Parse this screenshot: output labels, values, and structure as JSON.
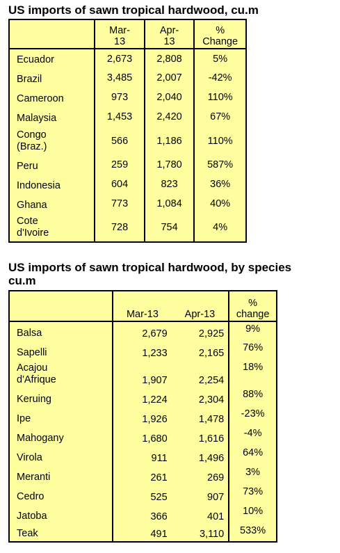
{
  "table1": {
    "title": "US imports of sawn tropical hardwood, cu.m",
    "headers": [
      "Mar-\n13",
      "Apr-\n13",
      "%\nChange"
    ],
    "rows": [
      {
        "label": "Ecuador",
        "mar": "2,673",
        "apr": "2,808",
        "change": "5%"
      },
      {
        "label": "Brazil",
        "mar": "3,485",
        "apr": "2,007",
        "change": "-42%"
      },
      {
        "label": "Cameroon",
        "mar": "973",
        "apr": "2,040",
        "change": "110%"
      },
      {
        "label": "Malaysia",
        "mar": "1,453",
        "apr": "2,420",
        "change": "67%"
      },
      {
        "label": "Congo\n(Braz.)",
        "mar": "566",
        "apr": "1,186",
        "change": "110%"
      },
      {
        "label": "Peru",
        "mar": "259",
        "apr": "1,780",
        "change": "587%"
      },
      {
        "label": "Indonesia",
        "mar": "604",
        "apr": "823",
        "change": "36%"
      },
      {
        "label": "Ghana",
        "mar": "773",
        "apr": "1,084",
        "change": "40%"
      },
      {
        "label": "Cote\nd'Ivoire",
        "mar": "728",
        "apr": "754",
        "change": "4%"
      }
    ]
  },
  "table2": {
    "title": "US imports of sawn tropical hardwood, by species\ncu.m",
    "headers": [
      "Mar-13",
      "Apr-13",
      "%\nchange"
    ],
    "rows": [
      {
        "label": "Balsa",
        "mar": "2,679",
        "apr": "2,925",
        "change": "9%"
      },
      {
        "label": "Sapelli",
        "mar": "1,233",
        "apr": "2,165",
        "change": "76%"
      },
      {
        "label": "Acajou\nd'Afrique",
        "mar": "1,907",
        "apr": "2,254",
        "change": "18%"
      },
      {
        "label": "Keruing",
        "mar": "1,224",
        "apr": "2,304",
        "change": "88%"
      },
      {
        "label": "Ipe",
        "mar": "1,926",
        "apr": "1,478",
        "change": "-23%"
      },
      {
        "label": "Mahogany",
        "mar": "1,680",
        "apr": "1,616",
        "change": "-4%"
      },
      {
        "label": "Virola",
        "mar": "911",
        "apr": "1,496",
        "change": "64%"
      },
      {
        "label": "Meranti",
        "mar": "261",
        "apr": "269",
        "change": "3%"
      },
      {
        "label": "Cedro",
        "mar": "525",
        "apr": "907",
        "change": "73%"
      },
      {
        "label": "Jatoba",
        "mar": "366",
        "apr": "401",
        "change": "10%"
      },
      {
        "label": "Teak",
        "mar": "491",
        "apr": "3,110",
        "change": "533%"
      }
    ]
  },
  "colors": {
    "table_fill": "#ffffa0",
    "border": "#000000"
  }
}
